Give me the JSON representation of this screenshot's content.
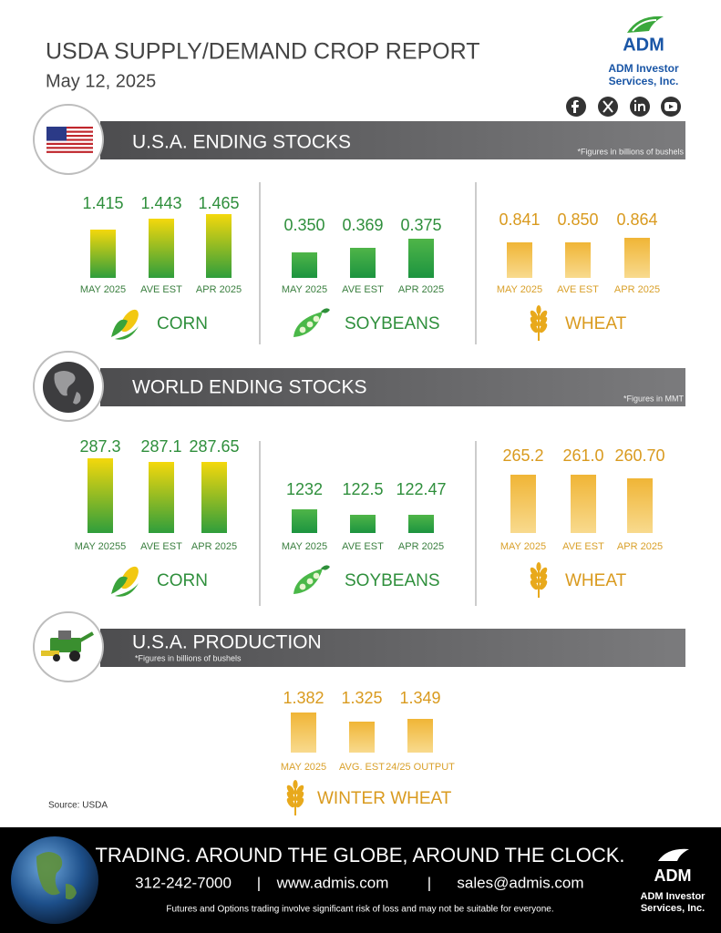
{
  "header": {
    "title": "USDA SUPPLY/DEMAND CROP REPORT",
    "date": "May 12, 2025"
  },
  "logo": {
    "brand": "ADM",
    "company_lines": [
      "ADM Investor",
      "Services, Inc."
    ]
  },
  "sections": [
    {
      "title": "U.S.A. ENDING STOCKS",
      "note": "*Figures in billions of bushels",
      "groups": [
        {
          "name": "CORN",
          "categories": [
            "MAY 2025",
            "AVE EST",
            "APR 2025"
          ],
          "values": [
            "1.415",
            "1.443",
            "1.465"
          ]
        },
        {
          "name": "SOYBEANS",
          "categories": [
            "MAY 2025",
            "AVE EST",
            "APR 2025"
          ],
          "values": [
            "0.350",
            "0.369",
            "0.375"
          ]
        },
        {
          "name": "WHEAT",
          "categories": [
            "MAY 2025",
            "AVE EST",
            "APR 2025"
          ],
          "values": [
            "0.841",
            "0.850",
            "0.864"
          ]
        }
      ]
    },
    {
      "title": "WORLD ENDING STOCKS",
      "note": "*Figures in MMT",
      "groups": [
        {
          "name": "CORN",
          "categories": [
            "MAY 20255",
            "AVE EST",
            "APR 2025"
          ],
          "values": [
            "287.3",
            "287.1",
            "287.65"
          ]
        },
        {
          "name": "SOYBEANS",
          "categories": [
            "MAY 2025",
            "AVE EST",
            "APR 2025"
          ],
          "values": [
            "1232",
            "122.5",
            "122.47"
          ]
        },
        {
          "name": "WHEAT",
          "categories": [
            "MAY 2025",
            "AVE EST",
            "APR 2025"
          ],
          "values": [
            "265.2",
            "261.0",
            "260.70"
          ]
        }
      ]
    },
    {
      "title": "U.S.A. PRODUCTION",
      "note": "*Figures in billions of bushels",
      "groups": [
        {
          "name": "WINTER WHEAT",
          "categories": [
            "MAY 2025",
            "AVG. EST",
            "24/25 OUTPUT"
          ],
          "values": [
            "1.382",
            "1.325",
            "1.349"
          ]
        }
      ]
    }
  ],
  "source": "Source: USDA",
  "footer": {
    "tagline": "TRADING. AROUND THE GLOBE, AROUND THE CLOCK.",
    "phone": "312-242-7000",
    "separator": "|",
    "website": "www.admis.com",
    "email": "sales@admis.com",
    "disclaimer": "Futures and Options trading involve significant risk of loss and may not be suitable for everyone."
  }
}
